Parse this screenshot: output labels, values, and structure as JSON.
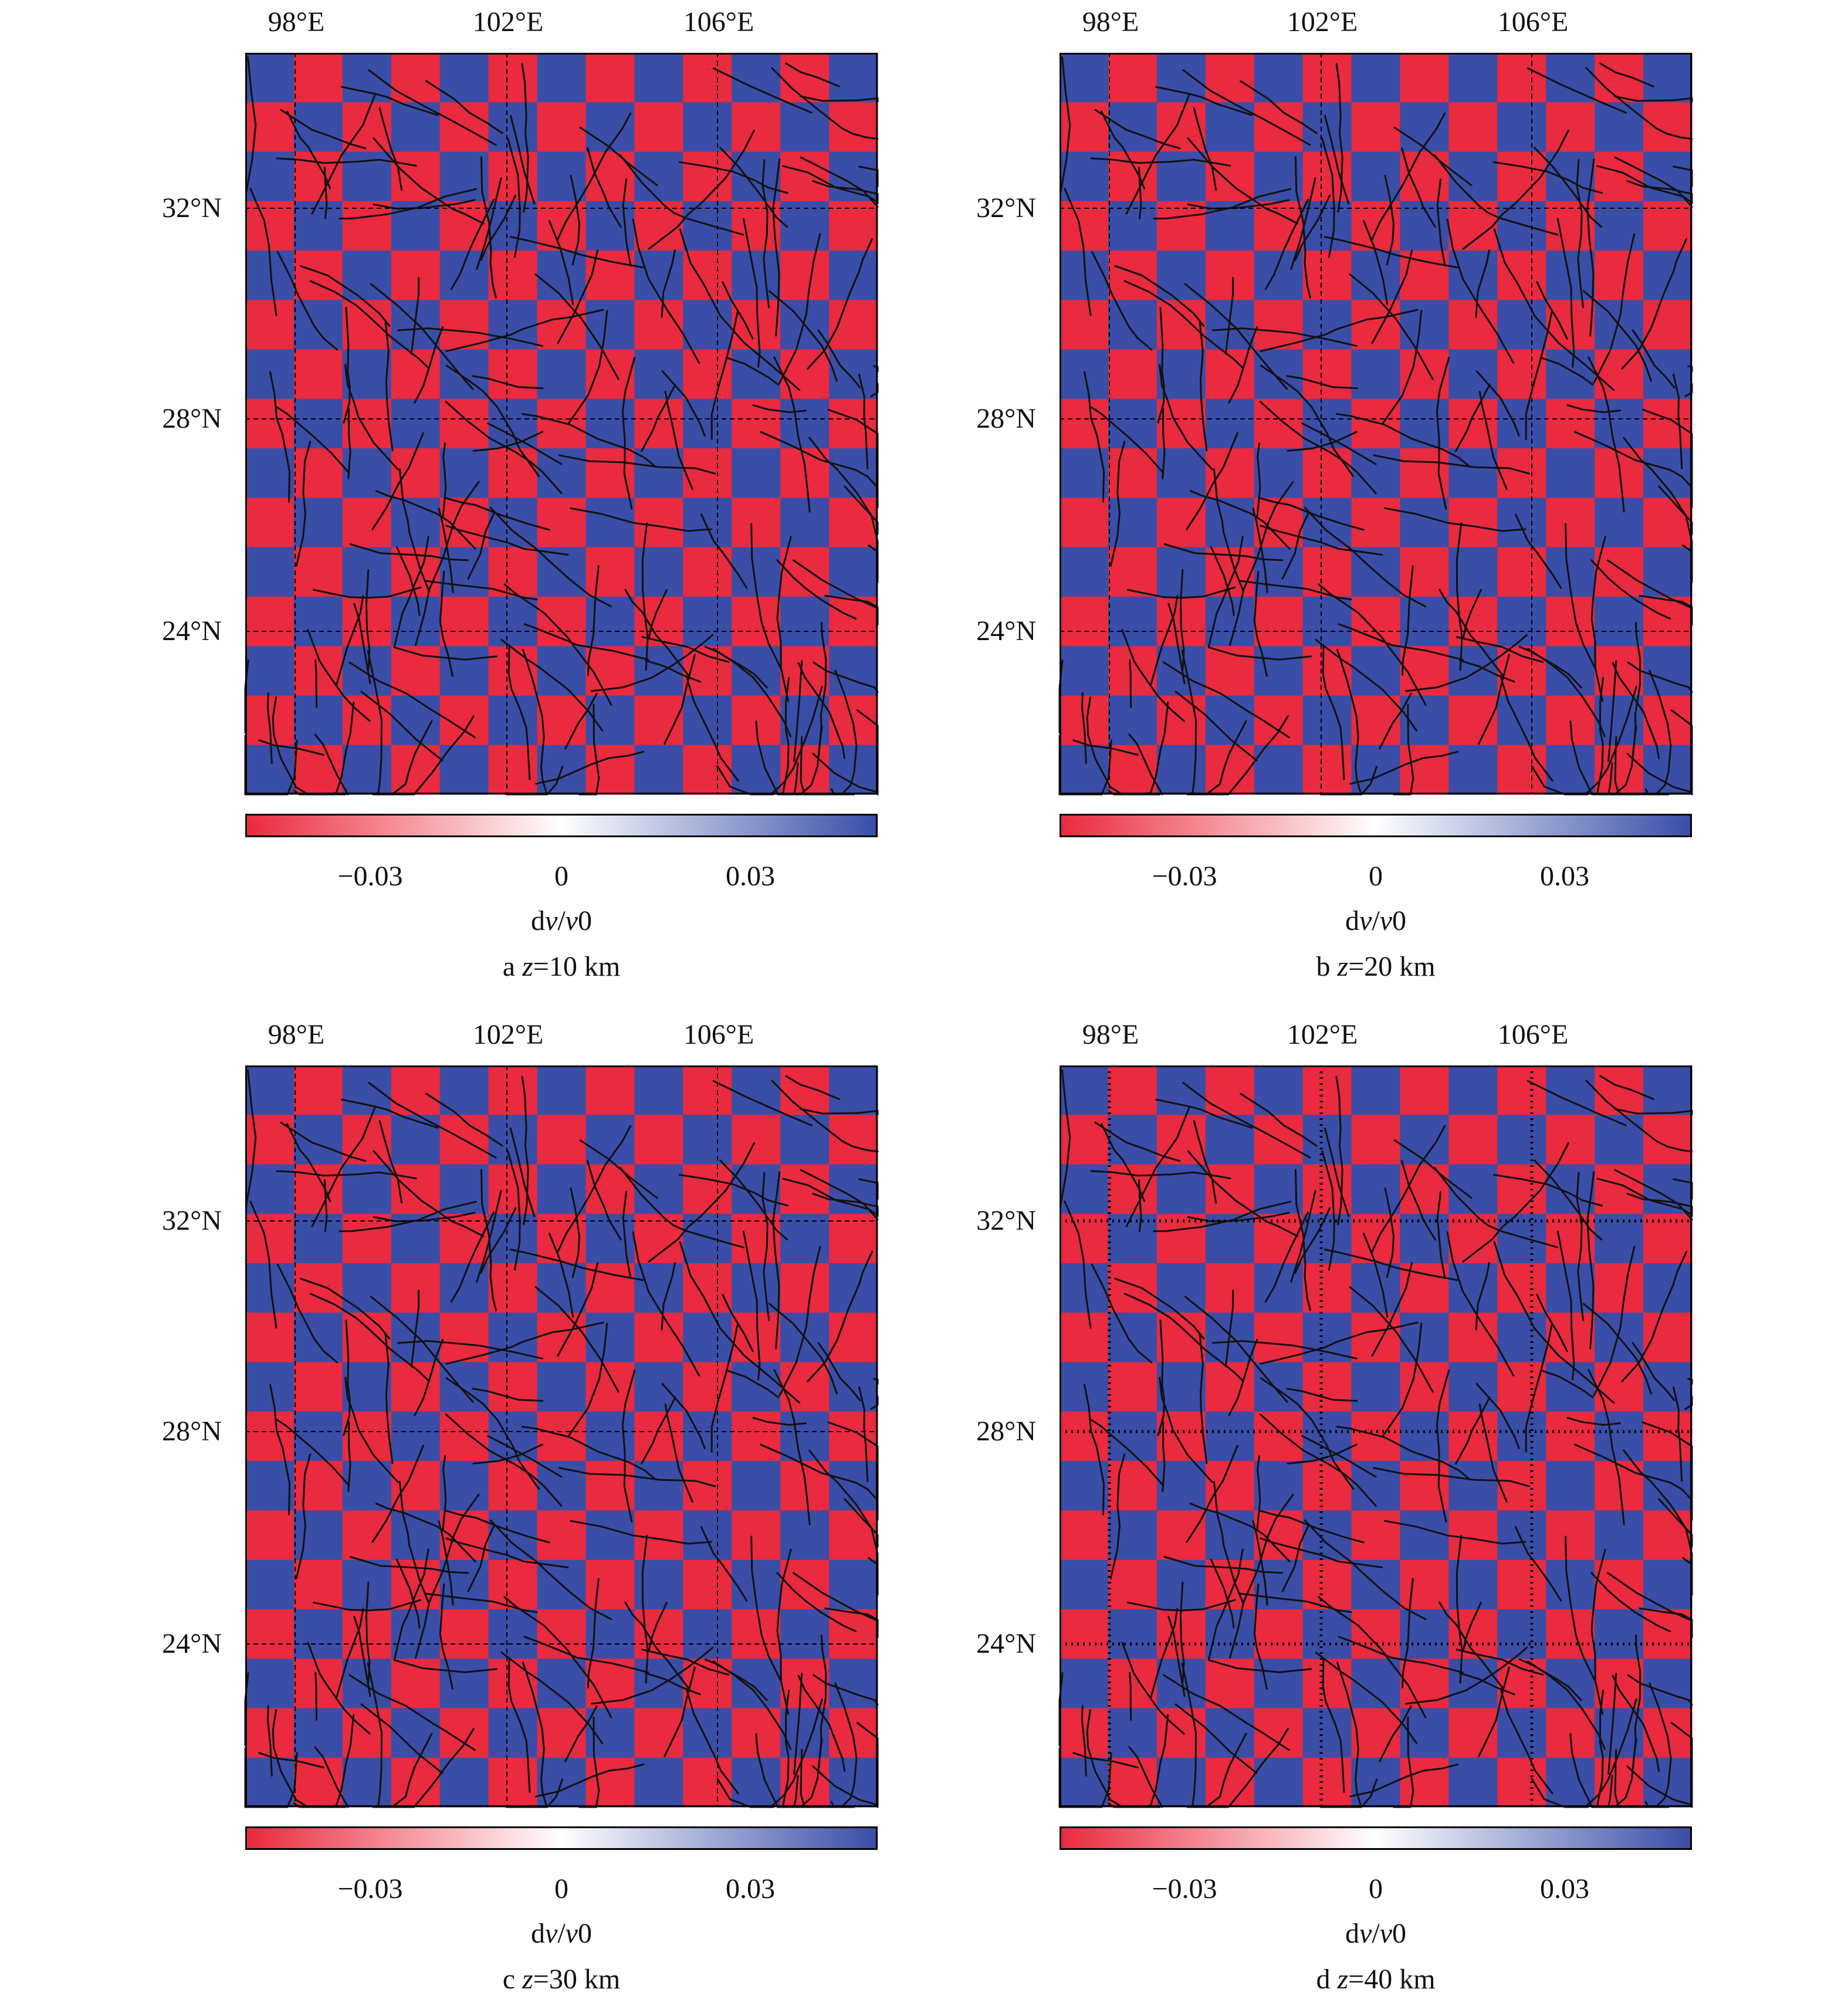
{
  "colors": {
    "positive": "#3a4ea8",
    "negative": "#ea2a3e",
    "fault": "#111111",
    "frame": "#000000",
    "colorbar_stops": [
      "#ea2a3e",
      "#ffffff",
      "#3a4ea8"
    ]
  },
  "legend": {
    "colorbar_ticks": [
      "−0.03",
      "0",
      "0.03"
    ],
    "colorbar_title_prefix": "d",
    "colorbar_title_v1": "v",
    "colorbar_title_slash": "/",
    "colorbar_title_v2": "v",
    "colorbar_title_suffix": "0"
  },
  "axes": {
    "lon_labels": [
      "98°E",
      "102°E",
      "106°E"
    ],
    "lat_labels": [
      "32°N",
      "28°N",
      "24°N"
    ]
  },
  "panels": [
    {
      "id": "a",
      "letter": "a",
      "z_var": "z",
      "z_value": "=10 km",
      "dotted_grid": false
    },
    {
      "id": "b",
      "letter": "b",
      "z_var": "z",
      "z_value": "=20 km",
      "dotted_grid": false
    },
    {
      "id": "c",
      "letter": "c",
      "z_var": "z",
      "z_value": "=30 km",
      "dotted_grid": false
    },
    {
      "id": "d",
      "letter": "d",
      "z_var": "z",
      "z_value": "=40 km",
      "dotted_grid": true
    }
  ]
}
